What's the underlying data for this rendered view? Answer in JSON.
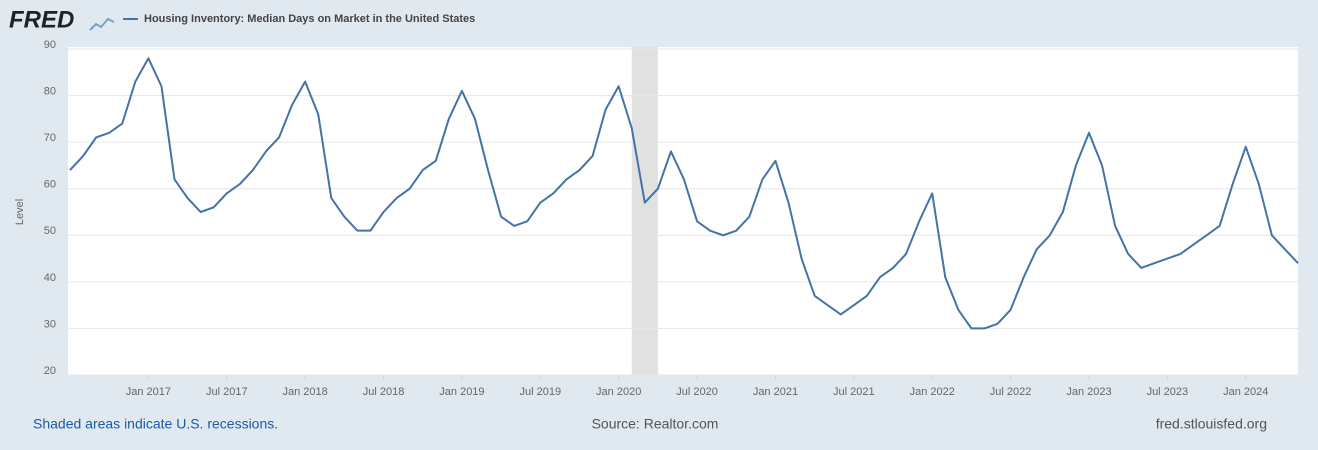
{
  "logo": "FRED",
  "chart_data": {
    "type": "line",
    "y_label": "Level",
    "x": [
      "2016-07",
      "2016-08",
      "2016-09",
      "2016-10",
      "2016-11",
      "2016-12",
      "2017-01",
      "2017-02",
      "2017-03",
      "2017-04",
      "2017-05",
      "2017-06",
      "2017-07",
      "2017-08",
      "2017-09",
      "2017-10",
      "2017-11",
      "2017-12",
      "2018-01",
      "2018-02",
      "2018-03",
      "2018-04",
      "2018-05",
      "2018-06",
      "2018-07",
      "2018-08",
      "2018-09",
      "2018-10",
      "2018-11",
      "2018-12",
      "2019-01",
      "2019-02",
      "2019-03",
      "2019-04",
      "2019-05",
      "2019-06",
      "2019-07",
      "2019-08",
      "2019-09",
      "2019-10",
      "2019-11",
      "2019-12",
      "2020-01",
      "2020-02",
      "2020-03",
      "2020-04",
      "2020-05",
      "2020-06",
      "2020-07",
      "2020-08",
      "2020-09",
      "2020-10",
      "2020-11",
      "2020-12",
      "2021-01",
      "2021-02",
      "2021-03",
      "2021-04",
      "2021-05",
      "2021-06",
      "2021-07",
      "2021-08",
      "2021-09",
      "2021-10",
      "2021-11",
      "2021-12",
      "2022-01",
      "2022-02",
      "2022-03",
      "2022-04",
      "2022-05",
      "2022-06",
      "2022-07",
      "2022-08",
      "2022-09",
      "2022-10",
      "2022-11",
      "2022-12",
      "2023-01",
      "2023-02",
      "2023-03",
      "2023-04",
      "2023-05",
      "2023-06",
      "2023-07",
      "2023-08",
      "2023-09",
      "2023-10",
      "2023-11",
      "2023-12",
      "2024-01",
      "2024-02",
      "2024-03",
      "2024-04",
      "2024-05"
    ],
    "series": [
      {
        "name": "Housing Inventory: Median Days on Market in the United States",
        "color": "#4572a7",
        "values": [
          64,
          67,
          71,
          72,
          74,
          83,
          88,
          82,
          62,
          58,
          55,
          56,
          59,
          61,
          64,
          68,
          71,
          78,
          83,
          76,
          58,
          54,
          51,
          51,
          55,
          58,
          60,
          64,
          66,
          75,
          81,
          75,
          64,
          54,
          52,
          53,
          57,
          59,
          62,
          64,
          67,
          77,
          82,
          73,
          57,
          60,
          68,
          62,
          53,
          51,
          50,
          51,
          54,
          62,
          66,
          57,
          45,
          37,
          35,
          33,
          35,
          37,
          41,
          43,
          46,
          53,
          59,
          41,
          34,
          30,
          30,
          31,
          34,
          41,
          47,
          50,
          55,
          65,
          72,
          65,
          52,
          46,
          43,
          44,
          45,
          46,
          48,
          50,
          52,
          61,
          69,
          61,
          50,
          47,
          44
        ]
      }
    ],
    "xlim": [
      "2016-07",
      "2024-05"
    ],
    "xticks": [
      {
        "value": "2017-01",
        "label": "Jan 2017"
      },
      {
        "value": "2017-07",
        "label": "Jul 2017"
      },
      {
        "value": "2018-01",
        "label": "Jan 2018"
      },
      {
        "value": "2018-07",
        "label": "Jul 2018"
      },
      {
        "value": "2019-01",
        "label": "Jan 2019"
      },
      {
        "value": "2019-07",
        "label": "Jul 2019"
      },
      {
        "value": "2020-01",
        "label": "Jan 2020"
      },
      {
        "value": "2020-07",
        "label": "Jul 2020"
      },
      {
        "value": "2021-01",
        "label": "Jan 2021"
      },
      {
        "value": "2021-07",
        "label": "Jul 2021"
      },
      {
        "value": "2022-01",
        "label": "Jan 2022"
      },
      {
        "value": "2022-07",
        "label": "Jul 2022"
      },
      {
        "value": "2023-01",
        "label": "Jan 2023"
      },
      {
        "value": "2023-07",
        "label": "Jul 2023"
      },
      {
        "value": "2024-01",
        "label": "Jan 2024"
      }
    ],
    "ylim": [
      20,
      90
    ],
    "yticks": [
      20,
      30,
      40,
      50,
      60,
      70,
      80,
      90
    ],
    "grid": true,
    "recessions": [
      {
        "start": "2020-02",
        "end": "2020-04"
      }
    ]
  },
  "footer": {
    "note": "Shaded areas indicate U.S. recessions.",
    "source": "Source: Realtor.com",
    "site": "fred.stlouisfed.org"
  }
}
